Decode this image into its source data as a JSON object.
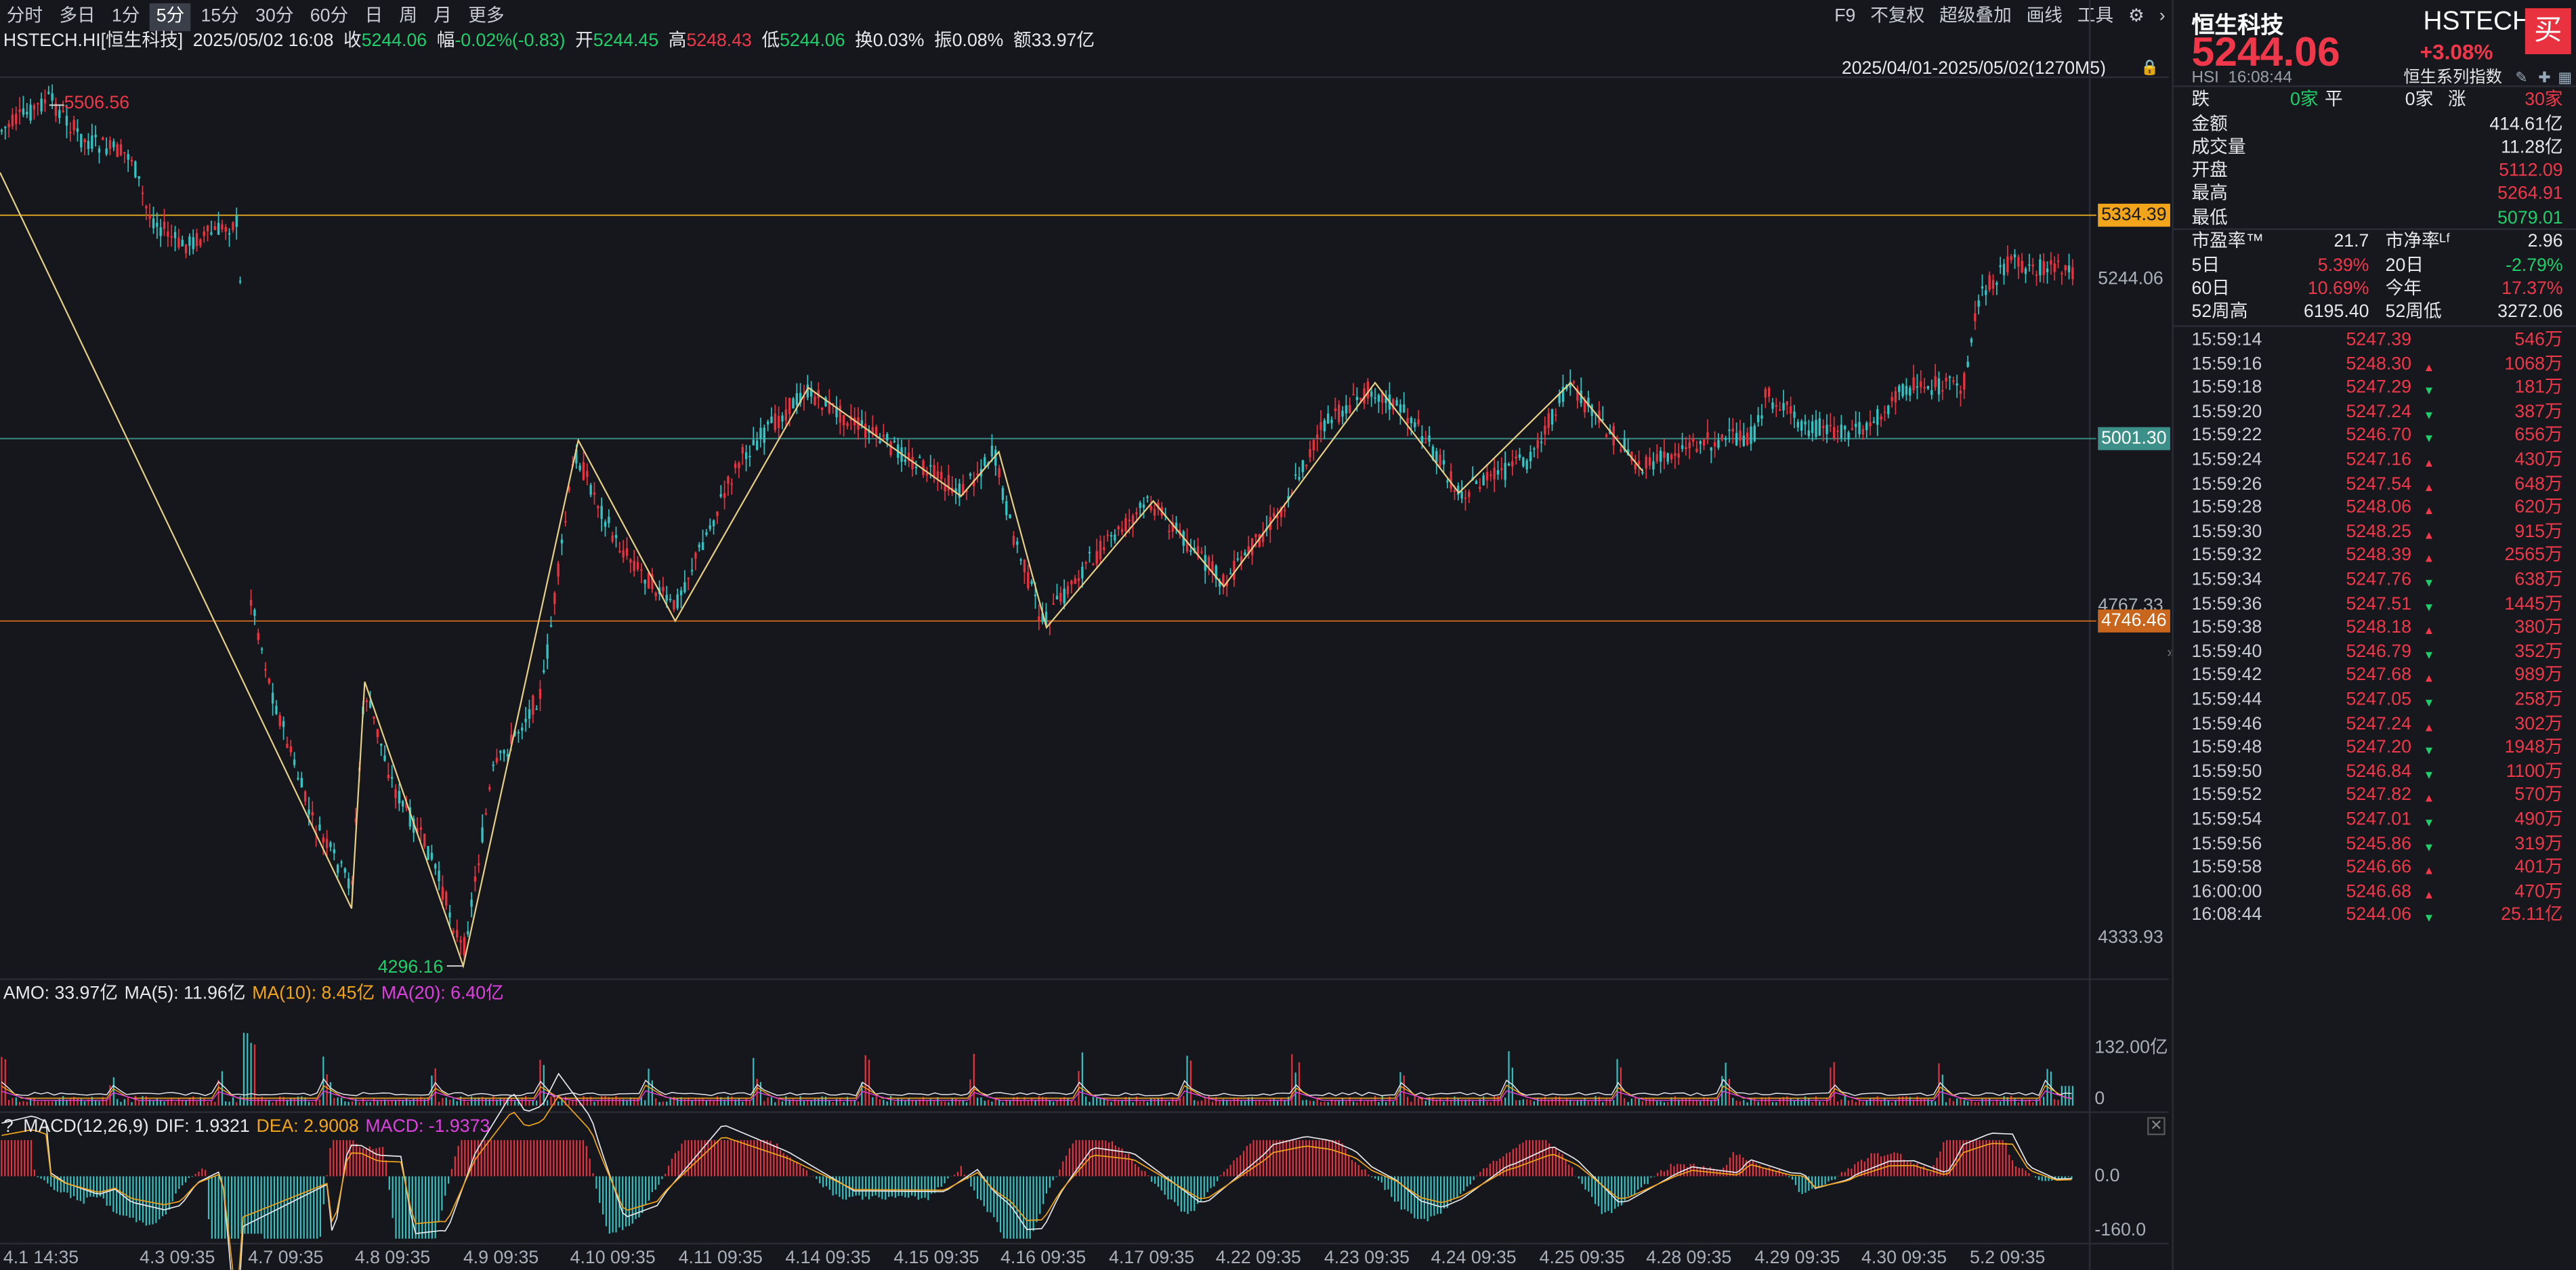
{
  "toolbar": {
    "timeframes": [
      "分时",
      "多日",
      "1分",
      "5分",
      "15分",
      "30分",
      "60分",
      "日",
      "周",
      "月",
      "更多"
    ],
    "active": "5分",
    "right_tools": [
      "F9",
      "不复权",
      "超级叠加",
      "画线",
      "工具",
      "⚙",
      "›"
    ]
  },
  "info": {
    "symbol": "HSTECH.HI[恒生科技]",
    "datetime": "2025/05/02 16:08",
    "close_label": "收",
    "close": "5244.06",
    "change_label": "幅",
    "change": "-0.02%(-0.83)",
    "open_label": "开",
    "open": "5244.45",
    "high_label": "高",
    "high": "5248.43",
    "low_label": "低",
    "low": "5244.06",
    "turnover_label": "换",
    "turnover": "0.03%",
    "amplitude_label": "振",
    "amplitude": "0.08%",
    "amount_label": "额",
    "amount": "33.97亿"
  },
  "range_text": "2025/04/01-2025/05/02(1270M5)",
  "price_axis": {
    "ticks": [
      "5244.06",
      "4767.33",
      "4333.93"
    ],
    "tags": [
      {
        "value": "5334.39",
        "color": "#f2a51a"
      },
      {
        "value": "5001.30",
        "color": "#3d8f8a"
      },
      {
        "value": "4746.46",
        "color": "#c8661e"
      }
    ],
    "high_label": "5506.56",
    "low_label": "4296.16"
  },
  "x_axis": [
    "4.1 14:35",
    "4.3 09:35",
    "4.7 09:35",
    "4.8 09:35",
    "4.9 09:35",
    "4.10 09:35",
    "4.11 09:35",
    "4.14 09:35",
    "4.15 09:35",
    "4.16 09:35",
    "4.17 09:35",
    "4.22 09:35",
    "4.23 09:35",
    "4.24 09:35",
    "4.25 09:35",
    "4.28 09:35",
    "4.29 09:35",
    "4.30 09:35",
    "5.2 09:35"
  ],
  "amo": {
    "label": "AMO: 33.97亿",
    "ma5": "MA(5): 11.96亿",
    "ma10": "MA(10): 8.45亿",
    "ma20": "MA(20): 6.40亿",
    "axis_top": "132.00亿",
    "axis_bottom": "0"
  },
  "macd": {
    "help": "?",
    "label": "MACD(12,26,9)",
    "dif": "DIF: 1.9321",
    "dea": "DEA: 2.9008",
    "macd": "MACD: -1.9373",
    "axis_top": "0.0",
    "axis_bottom": "-160.0"
  },
  "panel": {
    "name": "恒生科技",
    "code": "HSTECH",
    "price": "5244.06",
    "change": "+3.08%",
    "buy": "买",
    "sub_code": "HSI",
    "sub_time": "16:08:44",
    "series": "恒生系列指数",
    "stats": {
      "fall_label": "跌",
      "fall": "0家",
      "flat_label": "平",
      "flat": "0家",
      "rise_label": "涨",
      "rise": "30家",
      "amount_label": "金额",
      "amount": "414.61亿",
      "volume_label": "成交量",
      "volume": "11.28亿",
      "open_label": "开盘",
      "open": "5112.09",
      "high_label": "最高",
      "high": "5264.91",
      "low_label": "最低",
      "low": "5079.01",
      "pe_label": "市盈率™",
      "pe": "21.7",
      "pb_label": "市净率ᴸᶠ",
      "pb": "2.96",
      "d5_label": "5日",
      "d5": "5.39%",
      "d20_label": "20日",
      "d20": "-2.79%",
      "d60_label": "60日",
      "d60": "10.69%",
      "ytd_label": "今年",
      "ytd": "17.37%",
      "w52h_label": "52周高",
      "w52h": "6195.40",
      "w52l_label": "52周低",
      "w52l": "3272.06"
    },
    "ticks": [
      {
        "time": "15:59:14",
        "price": "5247.39",
        "dir": "",
        "vol": "546万"
      },
      {
        "time": "15:59:16",
        "price": "5248.30",
        "dir": "up",
        "vol": "1068万"
      },
      {
        "time": "15:59:18",
        "price": "5247.29",
        "dir": "down",
        "vol": "181万"
      },
      {
        "time": "15:59:20",
        "price": "5247.24",
        "dir": "down",
        "vol": "387万"
      },
      {
        "time": "15:59:22",
        "price": "5246.70",
        "dir": "down",
        "vol": "656万"
      },
      {
        "time": "15:59:24",
        "price": "5247.16",
        "dir": "up",
        "vol": "430万"
      },
      {
        "time": "15:59:26",
        "price": "5247.54",
        "dir": "up",
        "vol": "648万"
      },
      {
        "time": "15:59:28",
        "price": "5248.06",
        "dir": "up",
        "vol": "620万"
      },
      {
        "time": "15:59:30",
        "price": "5248.25",
        "dir": "up",
        "vol": "915万"
      },
      {
        "time": "15:59:32",
        "price": "5248.39",
        "dir": "up",
        "vol": "2565万"
      },
      {
        "time": "15:59:34",
        "price": "5247.76",
        "dir": "down",
        "vol": "638万"
      },
      {
        "time": "15:59:36",
        "price": "5247.51",
        "dir": "down",
        "vol": "1445万"
      },
      {
        "time": "15:59:38",
        "price": "5248.18",
        "dir": "up",
        "vol": "380万"
      },
      {
        "time": "15:59:40",
        "price": "5246.79",
        "dir": "down",
        "vol": "352万"
      },
      {
        "time": "15:59:42",
        "price": "5247.68",
        "dir": "up",
        "vol": "989万"
      },
      {
        "time": "15:59:44",
        "price": "5247.05",
        "dir": "down",
        "vol": "258万"
      },
      {
        "time": "15:59:46",
        "price": "5247.24",
        "dir": "up",
        "vol": "302万"
      },
      {
        "time": "15:59:48",
        "price": "5247.20",
        "dir": "down",
        "vol": "1948万"
      },
      {
        "time": "15:59:50",
        "price": "5246.84",
        "dir": "down",
        "vol": "1100万"
      },
      {
        "time": "15:59:52",
        "price": "5247.82",
        "dir": "up",
        "vol": "570万"
      },
      {
        "time": "15:59:54",
        "price": "5247.01",
        "dir": "down",
        "vol": "490万"
      },
      {
        "time": "15:59:56",
        "price": "5245.86",
        "dir": "down",
        "vol": "319万"
      },
      {
        "time": "15:59:58",
        "price": "5246.66",
        "dir": "up",
        "vol": "401万"
      },
      {
        "time": "16:00:00",
        "price": "5246.68",
        "dir": "up",
        "vol": "470万"
      },
      {
        "time": "16:08:44",
        "price": "5244.06",
        "dir": "down",
        "vol": "25.11亿"
      }
    ]
  },
  "colors": {
    "up": "#f0384a",
    "down": "#1fcf6a",
    "candle_up": "#e8323f",
    "candle_down": "#34c2c2",
    "zigzag": "#e8d089",
    "ma10": "#f2a51a",
    "ma20": "#e040e0"
  }
}
